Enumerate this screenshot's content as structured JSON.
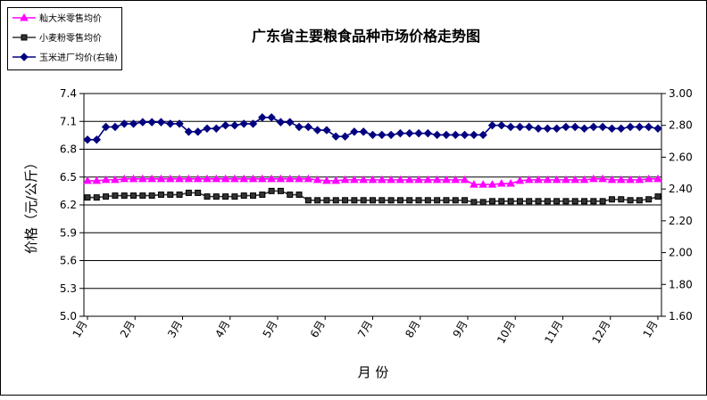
{
  "chart_data": {
    "type": "line",
    "title": "广东省主要粮食品种市场价格走势图",
    "xlabel": "月   份",
    "ylabel": "价格（元/公斤）",
    "x_ticks": [
      "1月",
      "2月",
      "3月",
      "4月",
      "5月",
      "6月",
      "7月",
      "8月",
      "9月",
      "10月",
      "11月",
      "12月",
      "1月"
    ],
    "y_left": {
      "range": [
        5.0,
        7.4
      ],
      "ticks": [
        "5.0",
        "5.3",
        "5.6",
        "5.9",
        "6.2",
        "6.5",
        "6.8",
        "7.1",
        "7.4"
      ]
    },
    "y_right": {
      "range": [
        1.6,
        3.0
      ],
      "ticks": [
        "1.60",
        "1.80",
        "2.00",
        "2.20",
        "2.40",
        "2.60",
        "2.80",
        "3.00"
      ]
    },
    "grid": "horizontal",
    "legend_position": "top-left",
    "series": [
      {
        "name": "籼大米零售均价",
        "axis": "left",
        "color": "#ff00ff",
        "marker": "triangle",
        "values": [
          6.46,
          6.46,
          6.47,
          6.47,
          6.48,
          6.48,
          6.48,
          6.48,
          6.48,
          6.48,
          6.48,
          6.48,
          6.48,
          6.48,
          6.48,
          6.48,
          6.48,
          6.48,
          6.48,
          6.48,
          6.48,
          6.48,
          6.48,
          6.48,
          6.48,
          6.47,
          6.46,
          6.46,
          6.47,
          6.47,
          6.47,
          6.47,
          6.47,
          6.47,
          6.47,
          6.47,
          6.47,
          6.47,
          6.47,
          6.47,
          6.47,
          6.47,
          6.42,
          6.42,
          6.42,
          6.43,
          6.43,
          6.46,
          6.47,
          6.47,
          6.47,
          6.47,
          6.47,
          6.47,
          6.47,
          6.48,
          6.48,
          6.47,
          6.47,
          6.47,
          6.47,
          6.48,
          6.48
        ]
      },
      {
        "name": "小麦粉零售均价",
        "axis": "left",
        "color": "#333333",
        "marker": "square",
        "values": [
          6.28,
          6.28,
          6.29,
          6.3,
          6.3,
          6.3,
          6.3,
          6.3,
          6.31,
          6.31,
          6.31,
          6.33,
          6.33,
          6.29,
          6.29,
          6.29,
          6.29,
          6.3,
          6.3,
          6.31,
          6.35,
          6.35,
          6.31,
          6.31,
          6.25,
          6.25,
          6.25,
          6.25,
          6.25,
          6.25,
          6.25,
          6.25,
          6.25,
          6.25,
          6.25,
          6.25,
          6.25,
          6.25,
          6.25,
          6.25,
          6.25,
          6.25,
          6.23,
          6.23,
          6.24,
          6.24,
          6.24,
          6.24,
          6.24,
          6.24,
          6.24,
          6.24,
          6.24,
          6.24,
          6.24,
          6.24,
          6.24,
          6.26,
          6.26,
          6.25,
          6.25,
          6.26,
          6.29
        ]
      },
      {
        "name": "玉米进厂均价(右轴)",
        "axis": "right",
        "color": "#000080",
        "marker": "diamond",
        "values": [
          2.71,
          2.71,
          2.79,
          2.79,
          2.81,
          2.81,
          2.82,
          2.82,
          2.82,
          2.81,
          2.81,
          2.76,
          2.76,
          2.78,
          2.78,
          2.8,
          2.8,
          2.81,
          2.81,
          2.85,
          2.85,
          2.82,
          2.82,
          2.79,
          2.79,
          2.77,
          2.77,
          2.73,
          2.73,
          2.76,
          2.76,
          2.74,
          2.74,
          2.74,
          2.75,
          2.75,
          2.75,
          2.75,
          2.74,
          2.74,
          2.74,
          2.74,
          2.74,
          2.74,
          2.8,
          2.8,
          2.79,
          2.79,
          2.79,
          2.78,
          2.78,
          2.78,
          2.79,
          2.79,
          2.78,
          2.79,
          2.79,
          2.78,
          2.78,
          2.79,
          2.79,
          2.79,
          2.78
        ]
      }
    ]
  }
}
